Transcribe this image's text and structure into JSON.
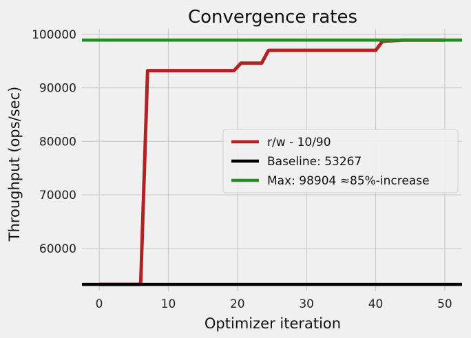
{
  "chart_data": {
    "type": "line",
    "title": "Convergence rates",
    "xlabel": "Optimizer iteration",
    "ylabel": "Throughput (ops/sec)",
    "xlim": [
      -2.5,
      52.5
    ],
    "ylim": [
      52000,
      101000
    ],
    "xticks": [
      0,
      10,
      20,
      30,
      40,
      50
    ],
    "yticks": [
      60000,
      70000,
      80000,
      90000,
      100000
    ],
    "grid": true,
    "legend_position": "center-right",
    "series": [
      {
        "name": "r/w - 10/90",
        "color": "#b22222",
        "style": "line",
        "x": [
          0,
          6,
          7,
          19.5,
          20.5,
          23.5,
          24.5,
          40,
          41,
          44,
          50
        ],
        "y": [
          53267,
          53267,
          93200,
          93200,
          94600,
          94600,
          97000,
          97000,
          98700,
          98904,
          98904
        ]
      },
      {
        "name": "Baseline: 53267",
        "color": "#000000",
        "style": "hline",
        "y": 53267
      },
      {
        "name": "Max: 98904 ≈85%-increase",
        "color": "#228b22",
        "style": "hline",
        "y": 98904
      }
    ]
  }
}
